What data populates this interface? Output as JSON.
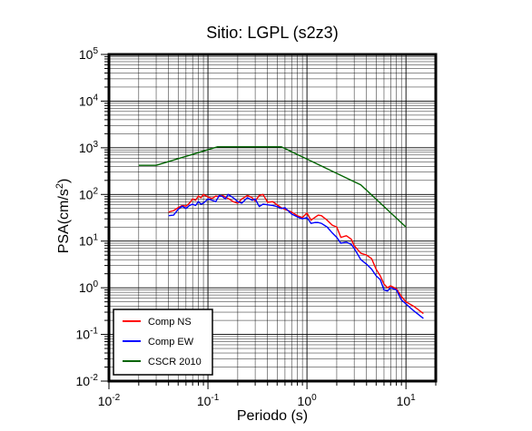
{
  "chart_data": {
    "type": "line",
    "title": "Sitio: LGPL (s2z3)",
    "xlabel": "Periodo (s)",
    "ylabel_main": "PSA(cm/s",
    "ylabel_sup": "2",
    "ylabel_close": ")",
    "x_scale": "log",
    "y_scale": "log",
    "xlim": [
      0.01,
      20
    ],
    "ylim": [
      0.01,
      100000
    ],
    "grid": true,
    "legend_position": "bottom-left",
    "x_ticks": [
      {
        "value": 0.01,
        "base": "10",
        "exp": "-2"
      },
      {
        "value": 0.1,
        "base": "10",
        "exp": "-1"
      },
      {
        "value": 1,
        "base": "10",
        "exp": "0"
      },
      {
        "value": 10,
        "base": "10",
        "exp": "1"
      }
    ],
    "y_ticks": [
      {
        "value": 0.01,
        "base": "10",
        "exp": "-2"
      },
      {
        "value": 0.1,
        "base": "10",
        "exp": "-1"
      },
      {
        "value": 1,
        "base": "10",
        "exp": "0"
      },
      {
        "value": 10,
        "base": "10",
        "exp": "1"
      },
      {
        "value": 100,
        "base": "10",
        "exp": "2"
      },
      {
        "value": 1000,
        "base": "10",
        "exp": "3"
      },
      {
        "value": 10000,
        "base": "10",
        "exp": "4"
      },
      {
        "value": 100000,
        "base": "10",
        "exp": "5"
      }
    ],
    "series": [
      {
        "name": "Comp NS",
        "color": "#ff0000",
        "points": [
          [
            0.04,
            42
          ],
          [
            0.045,
            45
          ],
          [
            0.05,
            52
          ],
          [
            0.055,
            58
          ],
          [
            0.06,
            56
          ],
          [
            0.065,
            65
          ],
          [
            0.07,
            80
          ],
          [
            0.075,
            75
          ],
          [
            0.08,
            92
          ],
          [
            0.085,
            85
          ],
          [
            0.09,
            100
          ],
          [
            0.1,
            88
          ],
          [
            0.11,
            82
          ],
          [
            0.12,
            92
          ],
          [
            0.13,
            90
          ],
          [
            0.14,
            95
          ],
          [
            0.15,
            88
          ],
          [
            0.16,
            82
          ],
          [
            0.18,
            70
          ],
          [
            0.2,
            65
          ],
          [
            0.22,
            80
          ],
          [
            0.25,
            95
          ],
          [
            0.28,
            85
          ],
          [
            0.3,
            72
          ],
          [
            0.33,
            95
          ],
          [
            0.36,
            100
          ],
          [
            0.4,
            68
          ],
          [
            0.45,
            70
          ],
          [
            0.5,
            60
          ],
          [
            0.55,
            52
          ],
          [
            0.6,
            48
          ],
          [
            0.7,
            42
          ],
          [
            0.8,
            35
          ],
          [
            0.9,
            32
          ],
          [
            1.0,
            40
          ],
          [
            1.1,
            28
          ],
          [
            1.2,
            32
          ],
          [
            1.3,
            36
          ],
          [
            1.4,
            35
          ],
          [
            1.6,
            28
          ],
          [
            1.8,
            22
          ],
          [
            2.0,
            20
          ],
          [
            2.2,
            12
          ],
          [
            2.5,
            13
          ],
          [
            2.8,
            11
          ],
          [
            3.0,
            8
          ],
          [
            3.5,
            5.5
          ],
          [
            4.0,
            5
          ],
          [
            4.5,
            4.2
          ],
          [
            5.0,
            2.5
          ],
          [
            5.5,
            1.8
          ],
          [
            6.0,
            1.2
          ],
          [
            6.5,
            1.0
          ],
          [
            7.0,
            1.1
          ],
          [
            8.0,
            0.95
          ],
          [
            9.0,
            0.65
          ],
          [
            10.0,
            0.5
          ],
          [
            12.0,
            0.4
          ],
          [
            15.0,
            0.28
          ]
        ]
      },
      {
        "name": "Comp EW",
        "color": "#0000ff",
        "points": [
          [
            0.04,
            35
          ],
          [
            0.045,
            36
          ],
          [
            0.05,
            48
          ],
          [
            0.055,
            56
          ],
          [
            0.06,
            50
          ],
          [
            0.065,
            58
          ],
          [
            0.07,
            62
          ],
          [
            0.075,
            58
          ],
          [
            0.08,
            70
          ],
          [
            0.085,
            62
          ],
          [
            0.09,
            65
          ],
          [
            0.1,
            80
          ],
          [
            0.11,
            75
          ],
          [
            0.12,
            70
          ],
          [
            0.13,
            95
          ],
          [
            0.14,
            90
          ],
          [
            0.15,
            80
          ],
          [
            0.16,
            100
          ],
          [
            0.18,
            85
          ],
          [
            0.2,
            70
          ],
          [
            0.22,
            65
          ],
          [
            0.25,
            85
          ],
          [
            0.28,
            75
          ],
          [
            0.3,
            80
          ],
          [
            0.33,
            55
          ],
          [
            0.36,
            62
          ],
          [
            0.4,
            60
          ],
          [
            0.45,
            58
          ],
          [
            0.5,
            55
          ],
          [
            0.55,
            50
          ],
          [
            0.6,
            52
          ],
          [
            0.7,
            38
          ],
          [
            0.8,
            33
          ],
          [
            0.9,
            30
          ],
          [
            1.0,
            32
          ],
          [
            1.1,
            24
          ],
          [
            1.2,
            25
          ],
          [
            1.3,
            25
          ],
          [
            1.4,
            24
          ],
          [
            1.6,
            20
          ],
          [
            1.8,
            15
          ],
          [
            2.0,
            12
          ],
          [
            2.2,
            9
          ],
          [
            2.5,
            9.5
          ],
          [
            2.8,
            8.5
          ],
          [
            3.0,
            7
          ],
          [
            3.5,
            4
          ],
          [
            4.0,
            3.2
          ],
          [
            4.5,
            2.5
          ],
          [
            5.0,
            1.8
          ],
          [
            5.5,
            1.5
          ],
          [
            6.0,
            0.9
          ],
          [
            6.5,
            0.85
          ],
          [
            7.0,
            1.0
          ],
          [
            8.0,
            0.9
          ],
          [
            9.0,
            0.55
          ],
          [
            10.0,
            0.45
          ],
          [
            12.0,
            0.32
          ],
          [
            15.0,
            0.22
          ]
        ]
      },
      {
        "name": "CSCR 2010",
        "color": "#006400",
        "points": [
          [
            0.02,
            420
          ],
          [
            0.03,
            420
          ],
          [
            0.125,
            1050
          ],
          [
            0.55,
            1050
          ],
          [
            3.5,
            160
          ],
          [
            10.0,
            20
          ]
        ]
      }
    ]
  }
}
